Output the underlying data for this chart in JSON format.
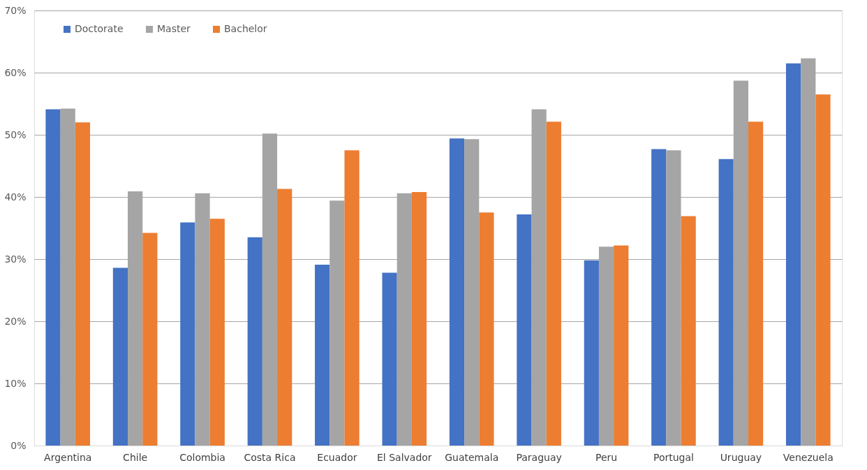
{
  "chart_data": {
    "type": "bar",
    "categories": [
      "Argentina",
      "Chile",
      "Colombia",
      "Costa Rica",
      "Ecuador",
      "El Salvador",
      "Guatemala",
      "Paraguay",
      "Peru",
      "Portugal",
      "Uruguay",
      "Venezuela"
    ],
    "series": [
      {
        "name": "Doctorate",
        "color": "#4472c4",
        "values": [
          54.1,
          28.6,
          35.9,
          33.5,
          29.1,
          27.8,
          49.4,
          37.2,
          29.8,
          47.7,
          46.1,
          61.5
        ]
      },
      {
        "name": "Master",
        "color": "#a5a5a5",
        "values": [
          54.2,
          40.9,
          40.6,
          50.2,
          39.4,
          40.6,
          49.3,
          54.1,
          32.0,
          47.5,
          58.7,
          62.3
        ]
      },
      {
        "name": "Bachelor",
        "color": "#ed7d31",
        "values": [
          52.0,
          34.2,
          36.5,
          41.3,
          47.5,
          40.8,
          37.5,
          52.1,
          32.2,
          36.9,
          52.1,
          56.5
        ]
      }
    ],
    "ylim": [
      0,
      70
    ],
    "yticks": [
      {
        "value": 0,
        "label": "0%"
      },
      {
        "value": 10,
        "label": "10%"
      },
      {
        "value": 20,
        "label": "20%"
      },
      {
        "value": 30,
        "label": "30%"
      },
      {
        "value": 40,
        "label": "40%"
      },
      {
        "value": 50,
        "label": "50%"
      },
      {
        "value": 60,
        "label": "60%"
      },
      {
        "value": 70,
        "label": "70%"
      }
    ],
    "grid": "y",
    "legend": "top left"
  }
}
